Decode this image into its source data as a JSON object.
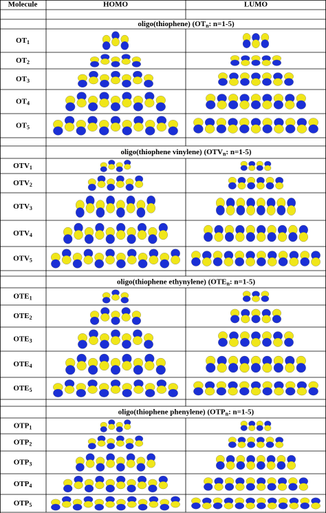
{
  "header": {
    "molecule": "Molecule",
    "homo": "HOMO",
    "lumo": "LUMO"
  },
  "groups": [
    {
      "title": {
        "prefix": "oligo(thiophene) (OT",
        "sub": "n",
        "suffix": ": n=1-5)"
      },
      "rows": [
        {
          "label": "OT",
          "sub": "1"
        },
        {
          "label": "OT",
          "sub": "2"
        },
        {
          "label": "OT",
          "sub": "3"
        },
        {
          "label": "OT",
          "sub": "4"
        },
        {
          "label": "OT",
          "sub": "5"
        }
      ]
    },
    {
      "title": {
        "prefix": "oligo(thiophene vinylene) (OTV",
        "sub": "n",
        "suffix": ": n=1-5)"
      },
      "rows": [
        {
          "label": "OTV",
          "sub": "1"
        },
        {
          "label": "OTV",
          "sub": "2"
        },
        {
          "label": "OTV",
          "sub": "3"
        },
        {
          "label": "OTV",
          "sub": "4"
        },
        {
          "label": "OTV",
          "sub": "5"
        }
      ]
    },
    {
      "title": {
        "prefix": "oligo(thiophene ethynylene) (OTE",
        "sub": "n",
        "suffix": ": n=1-5)"
      },
      "rows": [
        {
          "label": "OTE",
          "sub": "1"
        },
        {
          "label": "OTE",
          "sub": "2"
        },
        {
          "label": "OTE",
          "sub": "3"
        },
        {
          "label": "OTE",
          "sub": "4"
        },
        {
          "label": "OTE",
          "sub": "5"
        }
      ]
    },
    {
      "title": {
        "prefix": "oligo(thiophene phenylene) (OTP",
        "sub": "n",
        "suffix": ": n=1-5)"
      },
      "rows": [
        {
          "label": "OTP",
          "sub": "1"
        },
        {
          "label": "OTP",
          "sub": "2"
        },
        {
          "label": "OTP",
          "sub": "3"
        },
        {
          "label": "OTP",
          "sub": "4"
        },
        {
          "label": "OTP",
          "sub": "5"
        }
      ]
    }
  ]
}
